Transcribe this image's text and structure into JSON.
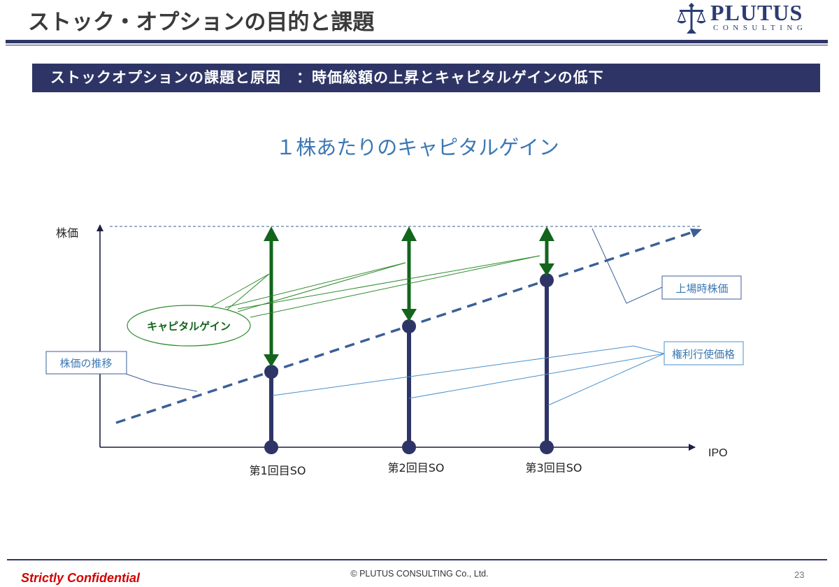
{
  "header": {
    "title": "ストック・オプションの目的と課題",
    "logo_name": "PLUTUS",
    "logo_sub": "CONSULTING"
  },
  "subheader": {
    "text": "ストックオプションの課題と原因　：時価総額の上昇とキャピタルゲインの低下"
  },
  "diagram": {
    "title": "１株あたりのキャピタルゲイン",
    "y_axis_label": "株価",
    "x_axis_label": "IPO",
    "so_labels": [
      "第1回目SO",
      "第2回目SO",
      "第3回目SO"
    ],
    "callouts": {
      "capital_gain": "キャピタルゲイン",
      "ipo_price": "上場時株価",
      "exercise_price": "権利行使価格",
      "price_trend": "株価の推移"
    },
    "colors": {
      "navy": "#2e3566",
      "trend": "#3a5f98",
      "green": "#12651b",
      "green_light": "#2e8b2e",
      "blue_text": "#3c78b4",
      "callout_blue": "#4a90cc"
    }
  },
  "footer": {
    "confidential": "Strictly Confidential",
    "copyright": "© PLUTUS CONSULTING Co., Ltd.",
    "page_number": "23"
  }
}
